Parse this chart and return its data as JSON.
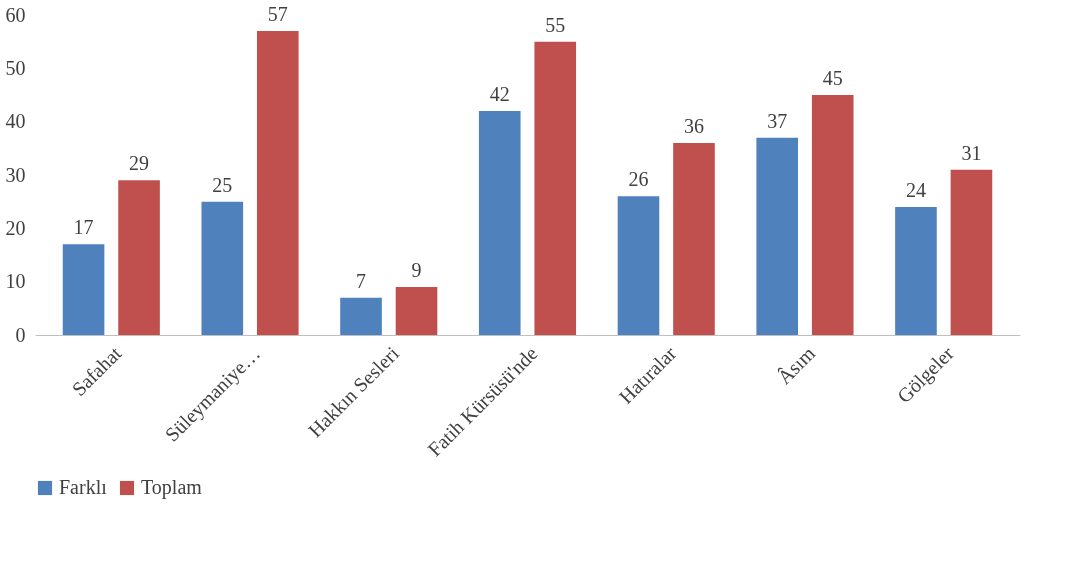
{
  "chart_data": {
    "type": "bar",
    "categories": [
      "Safahat",
      "Süleymaniye…",
      "Hakkın Sesleri",
      "Fatih Kürsüsü'nde",
      "Hatıralar",
      "Âsım",
      "Gölgeler"
    ],
    "series": [
      {
        "name": "Farklı",
        "color": "#4f81bd",
        "values": [
          17,
          25,
          7,
          42,
          26,
          37,
          24
        ]
      },
      {
        "name": "Toplam",
        "color": "#c0504d",
        "values": [
          29,
          57,
          9,
          55,
          36,
          45,
          31
        ]
      }
    ],
    "ylim": [
      0,
      60
    ],
    "yticks": [
      0,
      10,
      20,
      30,
      40,
      50,
      60
    ],
    "grid": false,
    "legend": "bottom",
    "data_labels": true
  }
}
